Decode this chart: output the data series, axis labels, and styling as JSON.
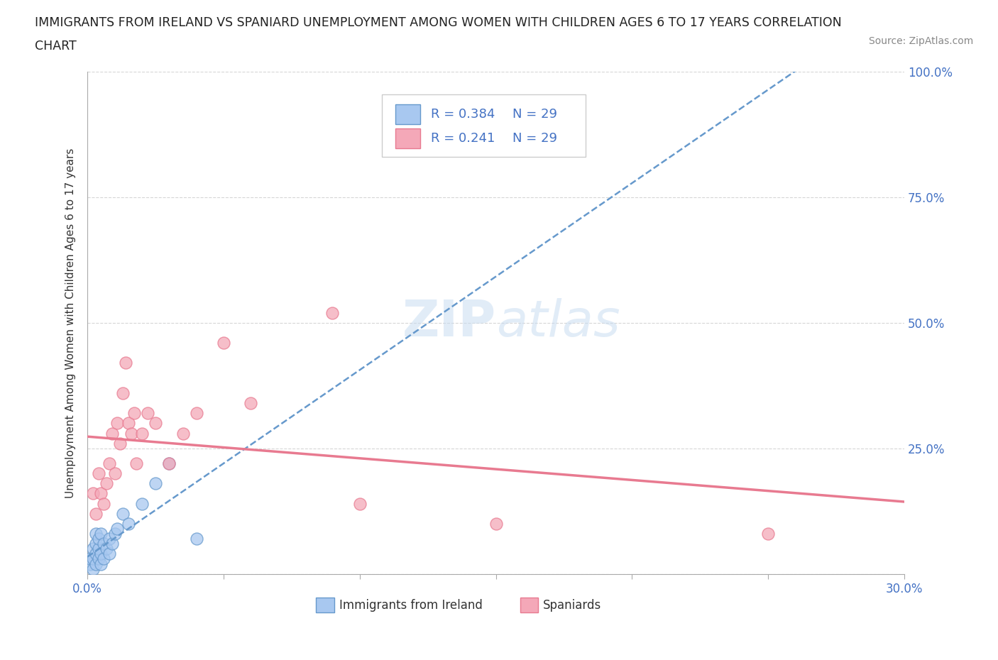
{
  "title_line1": "IMMIGRANTS FROM IRELAND VS SPANIARD UNEMPLOYMENT AMONG WOMEN WITH CHILDREN AGES 6 TO 17 YEARS CORRELATION",
  "title_line2": "CHART",
  "source": "Source: ZipAtlas.com",
  "ylabel": "Unemployment Among Women with Children Ages 6 to 17 years",
  "xlim": [
    0.0,
    0.3
  ],
  "ylim": [
    0.0,
    1.0
  ],
  "color_ireland": "#a8c8f0",
  "color_ireland_edge": "#6699cc",
  "color_spaniard": "#f4a8b8",
  "color_spaniard_edge": "#e87a90",
  "color_ireland_line": "#6699cc",
  "color_spaniard_line": "#e87a90",
  "background_color": "#ffffff",
  "grid_color": "#cccccc",
  "ireland_x": [
    0.001,
    0.001,
    0.002,
    0.002,
    0.002,
    0.003,
    0.003,
    0.003,
    0.003,
    0.004,
    0.004,
    0.004,
    0.005,
    0.005,
    0.005,
    0.006,
    0.006,
    0.007,
    0.008,
    0.008,
    0.009,
    0.01,
    0.011,
    0.013,
    0.015,
    0.02,
    0.025,
    0.03,
    0.04
  ],
  "ireland_y": [
    0.02,
    0.03,
    0.01,
    0.03,
    0.05,
    0.02,
    0.04,
    0.06,
    0.08,
    0.03,
    0.05,
    0.07,
    0.02,
    0.04,
    0.08,
    0.03,
    0.06,
    0.05,
    0.04,
    0.07,
    0.06,
    0.08,
    0.09,
    0.12,
    0.1,
    0.14,
    0.18,
    0.22,
    0.07
  ],
  "spaniard_x": [
    0.002,
    0.003,
    0.004,
    0.005,
    0.006,
    0.007,
    0.008,
    0.009,
    0.01,
    0.011,
    0.012,
    0.013,
    0.014,
    0.015,
    0.016,
    0.017,
    0.018,
    0.02,
    0.022,
    0.025,
    0.03,
    0.035,
    0.04,
    0.05,
    0.06,
    0.09,
    0.1,
    0.15,
    0.25
  ],
  "spaniard_y": [
    0.16,
    0.12,
    0.2,
    0.16,
    0.14,
    0.18,
    0.22,
    0.28,
    0.2,
    0.3,
    0.26,
    0.36,
    0.42,
    0.3,
    0.28,
    0.32,
    0.22,
    0.28,
    0.32,
    0.3,
    0.22,
    0.28,
    0.32,
    0.46,
    0.34,
    0.52,
    0.14,
    0.1,
    0.08
  ],
  "legend_text_color": "#4472c4",
  "ytick_color": "#4472c4",
  "xtick_color": "#4472c4"
}
